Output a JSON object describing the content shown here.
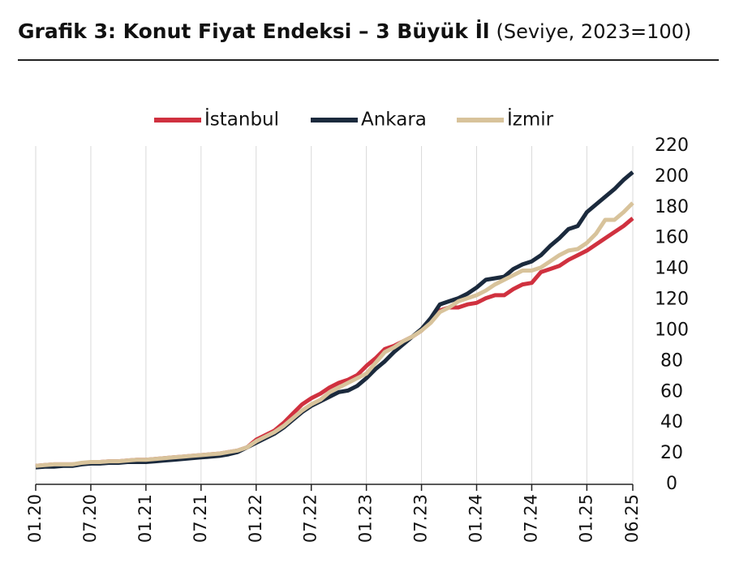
{
  "chart_data": {
    "type": "line",
    "title": "Grafik 3: Konut Fiyat Endeksi – 3 Büyük İl",
    "subtitle": "(Seviye, 2023=100)",
    "categories": [
      "01.20",
      null,
      null,
      null,
      null,
      null,
      "07.20",
      null,
      null,
      null,
      null,
      null,
      "01.21",
      null,
      null,
      null,
      null,
      null,
      "07.21",
      null,
      null,
      null,
      null,
      null,
      "01.22",
      null,
      null,
      null,
      null,
      null,
      "07.22",
      null,
      null,
      null,
      null,
      null,
      "01.23",
      null,
      null,
      null,
      null,
      null,
      "07.23",
      null,
      null,
      null,
      null,
      null,
      "01.24",
      null,
      null,
      null,
      null,
      null,
      "07.24",
      null,
      null,
      null,
      null,
      null,
      "01.25",
      null,
      null,
      null,
      null,
      "06.25"
    ],
    "series": [
      {
        "name": "İstanbul",
        "color": "#d0313f",
        "values": [
          12,
          12.5,
          13,
          13,
          13,
          13.5,
          14,
          14.5,
          15,
          15,
          15.5,
          16,
          16,
          16.5,
          17,
          17.5,
          18,
          18.5,
          19,
          19.5,
          20,
          21,
          22,
          24,
          29,
          32,
          35,
          40,
          46,
          52,
          56,
          59,
          63,
          66,
          68,
          71,
          77,
          82,
          88,
          90,
          93,
          96,
          100,
          106,
          113,
          115,
          115,
          117,
          118,
          121,
          123,
          123,
          127,
          130,
          131,
          138,
          140,
          142,
          146,
          149,
          152,
          156,
          160,
          164,
          168,
          173
        ]
      },
      {
        "name": "Ankara",
        "color": "#1b2a3d",
        "values": [
          11,
          11.5,
          11.5,
          12,
          12,
          13,
          13.5,
          13.5,
          14,
          14,
          14.5,
          14.5,
          14.5,
          15,
          15.5,
          16,
          16.5,
          17,
          17.5,
          18,
          18.5,
          19.5,
          21,
          24,
          27,
          30,
          33,
          37,
          42,
          47,
          51,
          54,
          57,
          60,
          61,
          64,
          69,
          75,
          80,
          86,
          91,
          96,
          101,
          108,
          117,
          119,
          121,
          124,
          128,
          133,
          134,
          135,
          140,
          143,
          145,
          149,
          155,
          160,
          166,
          168,
          177,
          182,
          187,
          192,
          198,
          203
        ]
      },
      {
        "name": "İzmir",
        "color": "#d8c39b",
        "values": [
          12,
          12.5,
          13,
          13,
          13,
          14,
          14.5,
          14.5,
          15,
          15,
          15.5,
          16,
          16,
          16.5,
          17,
          17.5,
          18,
          18.5,
          19,
          19.5,
          20,
          21,
          22,
          24,
          28,
          31,
          34,
          38,
          43,
          48,
          52,
          55,
          60,
          63,
          66,
          69,
          72,
          79,
          86,
          89,
          93,
          96,
          100,
          105,
          112,
          115,
          119,
          121,
          123,
          126,
          130,
          133,
          136,
          139,
          139,
          141,
          145,
          149,
          152,
          153,
          157,
          163,
          172,
          172,
          177,
          183
        ]
      }
    ],
    "ylim": [
      0,
      220
    ],
    "yticks": [
      0,
      20,
      40,
      60,
      80,
      100,
      120,
      140,
      160,
      180,
      200,
      220
    ],
    "grid": true,
    "legend": "top"
  }
}
